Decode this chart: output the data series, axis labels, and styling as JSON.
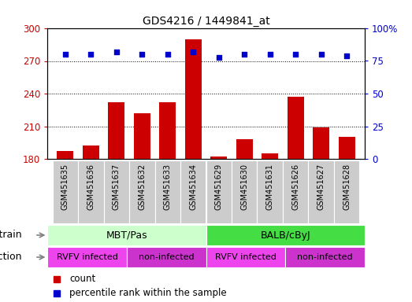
{
  "title": "GDS4216 / 1449841_at",
  "samples": [
    "GSM451635",
    "GSM451636",
    "GSM451637",
    "GSM451632",
    "GSM451633",
    "GSM451634",
    "GSM451629",
    "GSM451630",
    "GSM451631",
    "GSM451626",
    "GSM451627",
    "GSM451628"
  ],
  "counts": [
    187,
    192,
    232,
    222,
    232,
    290,
    182,
    198,
    185,
    237,
    209,
    200
  ],
  "percentiles": [
    80,
    80,
    82,
    80,
    80,
    82,
    78,
    80,
    80,
    80,
    80,
    79
  ],
  "ylim_left": [
    180,
    300
  ],
  "ylim_right": [
    0,
    100
  ],
  "yticks_left": [
    180,
    210,
    240,
    270,
    300
  ],
  "yticks_right": [
    0,
    25,
    50,
    75,
    100
  ],
  "ytick_right_labels": [
    "0",
    "25",
    "50",
    "75",
    "100%"
  ],
  "bar_color": "#cc0000",
  "dot_color": "#0000cc",
  "mbt_color": "#ccffcc",
  "balb_color": "#44dd44",
  "rvfv_color": "#ee44ee",
  "noninfect_color": "#cc33cc",
  "legend_count_color": "#cc0000",
  "legend_dot_color": "#0000cc",
  "axis_color_left": "#cc0000",
  "axis_color_right": "#0000cc",
  "tick_bg_color": "#cccccc",
  "infection_labels": [
    "RVFV infected",
    "non-infected",
    "RVFV infected",
    "non-infected"
  ],
  "infection_ranges": [
    [
      0,
      3
    ],
    [
      3,
      6
    ],
    [
      6,
      9
    ],
    [
      9,
      12
    ]
  ],
  "infection_colors": [
    "#ee44ee",
    "#cc33cc",
    "#ee44ee",
    "#cc33cc"
  ]
}
